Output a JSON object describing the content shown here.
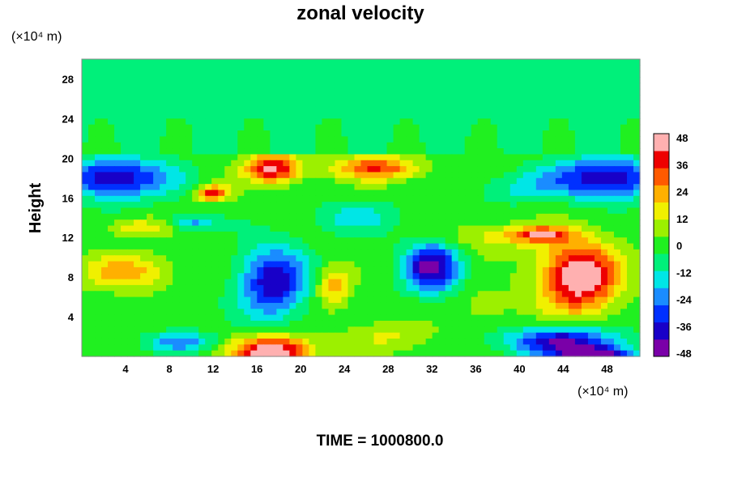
{
  "chart_data": {
    "type": "heatmap",
    "title": "zonal velocity",
    "ylabel": "Height",
    "y_unit_label": "(×10⁴ m)",
    "x_unit_label": "(×10⁴ m)",
    "footer": "TIME = 1000800.0",
    "x_ticks": [
      "4",
      "8",
      "12",
      "16",
      "20",
      "24",
      "28",
      "32",
      "36",
      "40",
      "44",
      "48"
    ],
    "y_ticks": [
      "4",
      "8",
      "12",
      "16",
      "20",
      "24",
      "28"
    ],
    "colorbar_ticks": [
      "48",
      "36",
      "24",
      "12",
      "0",
      "-12",
      "-24",
      "-36",
      "-48"
    ],
    "xlim": [
      0,
      51
    ],
    "ylim": [
      0,
      30
    ],
    "zlim": [
      -48,
      48
    ],
    "colorbar_colors": [
      "#7a00a8",
      "#1800c8",
      "#0030ff",
      "#1a8cff",
      "#00e6e6",
      "#00f07a",
      "#20f020",
      "#9cf000",
      "#f0f000",
      "#ffb000",
      "#ff5a00",
      "#ee0000",
      "#ffb0b0"
    ],
    "features": [
      {
        "x": 17.5,
        "y": 19,
        "rx": 2.5,
        "ry": 1.5,
        "value": 44
      },
      {
        "x": 12,
        "y": 16.5,
        "rx": 1.5,
        "ry": 0.8,
        "value": 38
      },
      {
        "x": 27,
        "y": 19,
        "rx": 4,
        "ry": 1.2,
        "value": 32
      },
      {
        "x": 3,
        "y": 18,
        "rx": 5,
        "ry": 2,
        "value": -40
      },
      {
        "x": 48,
        "y": 18,
        "rx": 5,
        "ry": 2,
        "value": -42
      },
      {
        "x": 17.5,
        "y": 7.5,
        "rx": 3,
        "ry": 3.5,
        "value": -40
      },
      {
        "x": 32,
        "y": 9,
        "rx": 2.5,
        "ry": 2.5,
        "value": -44
      },
      {
        "x": 45.5,
        "y": 8,
        "rx": 3.5,
        "ry": 3.5,
        "value": 52
      },
      {
        "x": 17.5,
        "y": 0.5,
        "rx": 3.5,
        "ry": 1.5,
        "value": 52
      },
      {
        "x": 23,
        "y": 7,
        "rx": 1.5,
        "ry": 2,
        "value": 22
      },
      {
        "x": 4,
        "y": 8.5,
        "rx": 4,
        "ry": 1.8,
        "value": 22
      },
      {
        "x": 44,
        "y": 1.5,
        "rx": 5,
        "ry": 1.5,
        "value": -42
      },
      {
        "x": 47,
        "y": 0.2,
        "rx": 3,
        "ry": 0.7,
        "value": -50
      },
      {
        "x": 9,
        "y": 1.5,
        "rx": 3,
        "ry": 1,
        "value": -24
      },
      {
        "x": 5,
        "y": 13,
        "rx": 3,
        "ry": 1,
        "value": 16
      },
      {
        "x": 38,
        "y": 12,
        "rx": 5,
        "ry": 1.5,
        "value": 14
      },
      {
        "x": 25,
        "y": 14,
        "rx": 4,
        "ry": 1.5,
        "value": -14
      },
      {
        "x": 40,
        "y": 17,
        "rx": 4,
        "ry": 1.5,
        "value": -12
      },
      {
        "x": 28,
        "y": 2,
        "rx": 4,
        "ry": 1.5,
        "value": 12
      },
      {
        "x": 37,
        "y": 5,
        "rx": 3,
        "ry": 2,
        "value": 8
      },
      {
        "x": 10,
        "y": 13.5,
        "rx": 2,
        "ry": 0.8,
        "value": -22
      },
      {
        "x": 42,
        "y": 12.3,
        "rx": 2.5,
        "ry": 0.7,
        "value": 36
      }
    ]
  }
}
